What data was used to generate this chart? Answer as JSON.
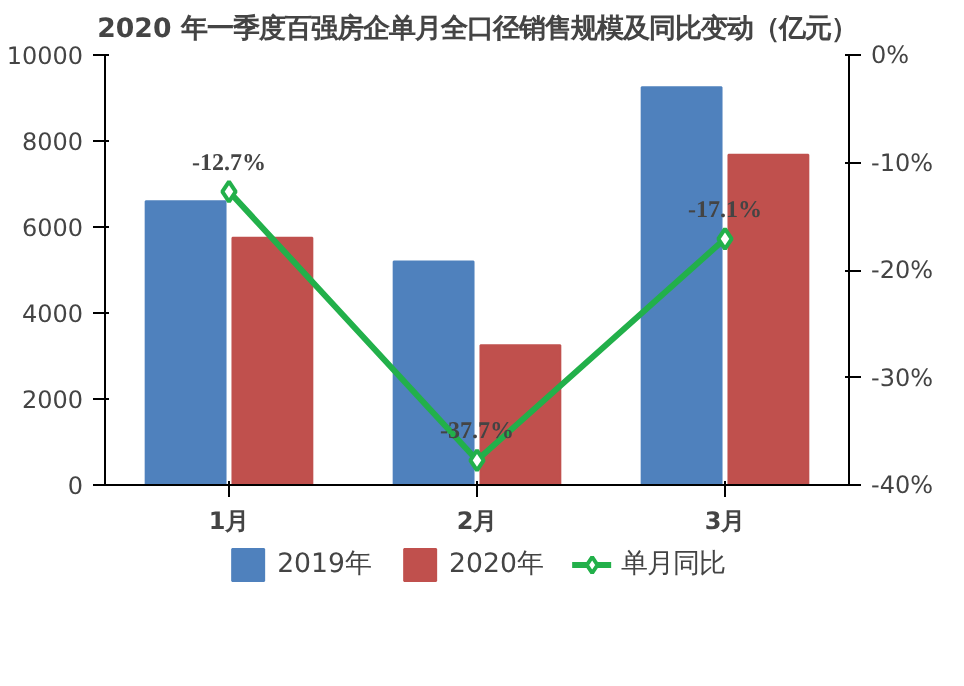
{
  "chart_data": {
    "type": "bar",
    "title": "2020 年一季度百强房企单月全口径销售规模及同比变动（亿元）",
    "categories": [
      "1月",
      "2月",
      "3月"
    ],
    "series": [
      {
        "name": "2019年",
        "color": "#4f81bd",
        "values": [
          6600,
          5200,
          9250
        ]
      },
      {
        "name": "2020年",
        "color": "#c0504d",
        "values": [
          5750,
          3250,
          7680
        ]
      },
      {
        "name": "单月同比",
        "type": "line",
        "axis": "y2",
        "color": "#22b04a",
        "marker": "diamond",
        "values": [
          -12.7,
          -37.7,
          -17.1
        ],
        "value_labels": [
          "-12.7%",
          "-37.7%",
          "-17.1%"
        ]
      }
    ],
    "ylim": [
      0,
      10000
    ],
    "yticks": [
      0,
      2000,
      4000,
      6000,
      8000,
      10000
    ],
    "y2lim": [
      -40,
      0
    ],
    "y2ticks": [
      {
        "value": 0,
        "label": "0%"
      },
      {
        "value": -10,
        "label": "-10%"
      },
      {
        "value": -20,
        "label": "-20%"
      },
      {
        "value": -30,
        "label": "-30%"
      },
      {
        "value": -40,
        "label": "-40%"
      }
    ],
    "grid": false,
    "legend": "bottom"
  }
}
